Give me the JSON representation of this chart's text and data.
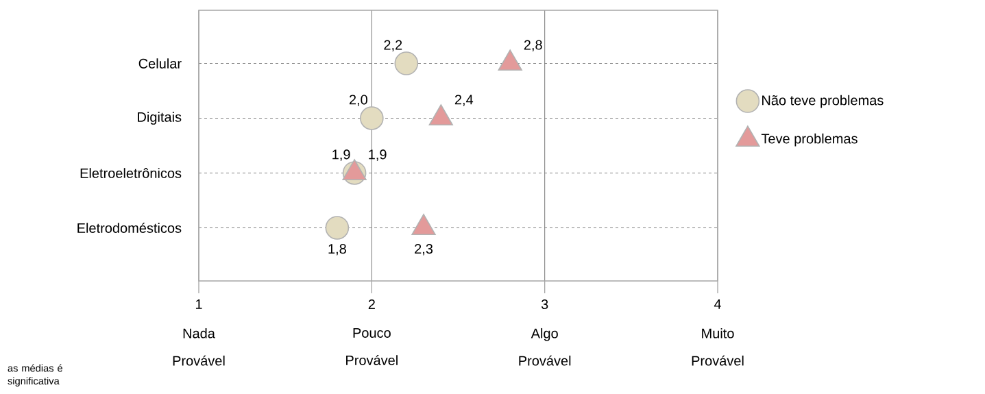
{
  "chart_data": {
    "type": "scatter",
    "orientation": "horizontal",
    "categories": [
      "Celular",
      "Digitais",
      "Eletroeletrônicos",
      "Eletrodomésticos"
    ],
    "series": [
      {
        "name": "Não teve problemas",
        "color": "#e3dcc0",
        "marker": "circle",
        "values": [
          2.2,
          2.0,
          1.9,
          1.8
        ],
        "value_labels": [
          "2,2",
          "2,0",
          "1,9",
          "1,8"
        ]
      },
      {
        "name": "Teve problemas",
        "color": "#e39a9a",
        "marker": "triangle",
        "values": [
          2.8,
          2.4,
          1.9,
          2.3
        ],
        "value_labels": [
          "2,8",
          "2,4",
          "1,9",
          "2,3"
        ]
      }
    ],
    "xlim": [
      1,
      4
    ],
    "xticks": [
      1,
      2,
      3,
      4
    ],
    "grid": true,
    "legend": "right",
    "annotations": [
      "Nada Provável",
      "Pouco Provável",
      "Algo Provável",
      "Muito Provável",
      "as médias é significativa"
    ]
  }
}
